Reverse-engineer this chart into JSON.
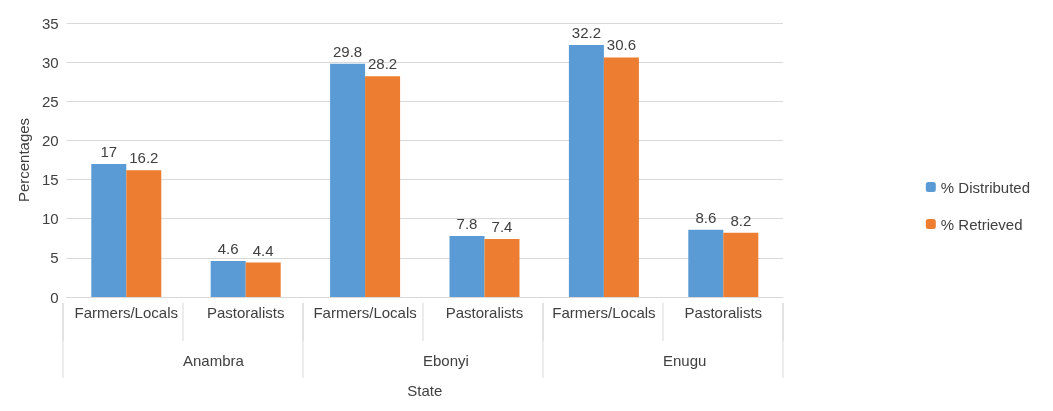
{
  "chart_data": {
    "type": "bar",
    "xlabel": "State",
    "ylabel": "Percentages",
    "categories": [
      "Farmers/Locals",
      "Pastoralists",
      "Farmers/Locals",
      "Pastoralists",
      "Farmers/Locals",
      "Pastoralists"
    ],
    "annotations": [
      "Anambra",
      "Ebonyi",
      "Enugu"
    ],
    "series": [
      {
        "name": "% Distributed",
        "color": "#5b9bd5",
        "values": [
          17,
          4.6,
          29.8,
          7.8,
          32.2,
          8.6
        ]
      },
      {
        "name": "% Retrieved",
        "color": "#ed7d31",
        "values": [
          16.2,
          4.4,
          28.2,
          7.4,
          30.6,
          8.2
        ]
      }
    ],
    "ylim": [
      0,
      35
    ],
    "yticks": [
      0,
      5,
      10,
      15,
      20,
      25,
      30,
      35
    ],
    "grid": "y",
    "legend": "right",
    "data_labels": true
  }
}
